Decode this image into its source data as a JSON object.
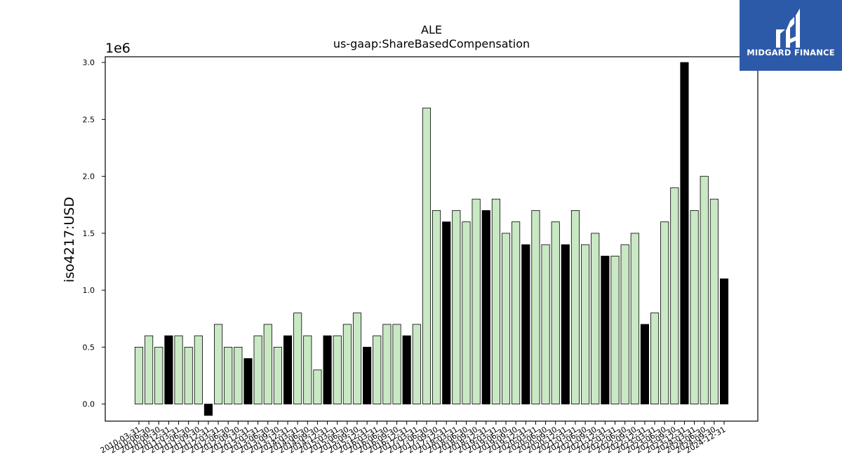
{
  "brand": {
    "name": "MIDGARD FINANCE",
    "bg_color": "#2d5aa8"
  },
  "chart_data": {
    "type": "bar",
    "title": "ALE",
    "subtitle": "us-gaap:ShareBasedCompensation",
    "ylabel": "iso4217:USD",
    "xlabel": "",
    "y_scale_label": "1e6",
    "ylim": [
      -0.15,
      3.05
    ],
    "yticks": [
      "0.0",
      "0.5",
      "1.0",
      "1.5",
      "2.0",
      "2.5",
      "3.0"
    ],
    "colors": {
      "quarter": "#c9e8c4",
      "annual": "#000000",
      "edge": "#000000"
    },
    "grid": false,
    "categories": [
      "2010-03-31",
      "2010-06-30",
      "2010-09-30",
      "2010-12-31",
      "2011-03-31",
      "2011-06-30",
      "2011-09-30",
      "2011-12-31",
      "2012-03-31",
      "2012-06-30",
      "2012-09-30",
      "2012-12-31",
      "2013-03-31",
      "2013-06-30",
      "2013-09-30",
      "2013-12-31",
      "2014-03-31",
      "2014-06-30",
      "2014-09-30",
      "2014-12-31",
      "2015-03-31",
      "2015-06-30",
      "2015-09-30",
      "2015-12-31",
      "2016-03-31",
      "2016-06-30",
      "2016-09-30",
      "2016-12-31",
      "2017-03-31",
      "2017-06-30",
      "2017-09-30",
      "2017-12-31",
      "2018-03-31",
      "2018-06-30",
      "2018-09-30",
      "2018-12-31",
      "2019-03-31",
      "2019-06-30",
      "2019-09-30",
      "2019-12-31",
      "2020-03-31",
      "2020-06-30",
      "2020-09-30",
      "2020-12-31",
      "2021-03-31",
      "2021-06-30",
      "2021-09-30",
      "2021-12-31",
      "2022-03-31",
      "2022-06-30",
      "2022-09-30",
      "2022-12-31",
      "2023-03-31",
      "2023-06-30",
      "2023-09-30",
      "2023-12-31",
      "2024-03-31",
      "2024-06-30",
      "2024-09-30",
      "2024-12-31"
    ],
    "values": [
      0.5,
      0.6,
      0.5,
      0.6,
      0.6,
      0.5,
      0.6,
      -0.1,
      0.7,
      0.5,
      0.5,
      0.4,
      0.6,
      0.7,
      0.5,
      0.6,
      0.8,
      0.6,
      0.3,
      0.6,
      0.6,
      0.7,
      0.8,
      0.5,
      0.6,
      0.7,
      0.7,
      0.6,
      0.7,
      2.6,
      1.7,
      1.6,
      1.7,
      1.6,
      1.8,
      1.7,
      1.8,
      1.5,
      1.6,
      1.4,
      1.7,
      1.4,
      1.6,
      1.4,
      1.7,
      1.4,
      1.5,
      1.3,
      1.3,
      1.4,
      1.5,
      0.7,
      0.8,
      1.6,
      1.9,
      3.0,
      1.7,
      2.0,
      1.8,
      1.1
    ],
    "annual_flags": [
      false,
      false,
      false,
      true,
      false,
      false,
      false,
      true,
      false,
      false,
      false,
      true,
      false,
      false,
      false,
      true,
      false,
      false,
      false,
      true,
      false,
      false,
      false,
      true,
      false,
      false,
      false,
      true,
      false,
      false,
      false,
      true,
      false,
      false,
      false,
      true,
      false,
      false,
      false,
      true,
      false,
      false,
      false,
      true,
      false,
      false,
      false,
      true,
      false,
      false,
      false,
      true,
      false,
      false,
      false,
      true,
      false,
      false,
      false,
      true
    ]
  }
}
